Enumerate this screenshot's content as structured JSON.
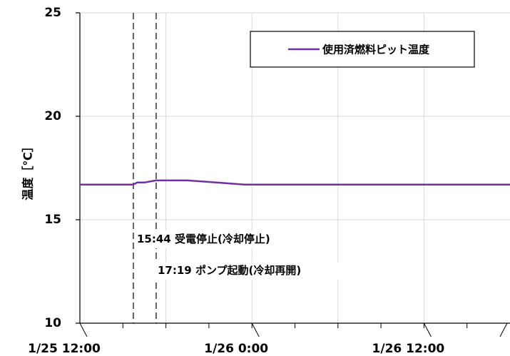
{
  "chart_data": {
    "type": "line",
    "ylabel": "温度［℃］",
    "ylim": [
      10,
      25
    ],
    "yticks": [
      10,
      15,
      20,
      25
    ],
    "x_tick_labels": [
      "1/25 12:00",
      "1/26 0:00",
      "1/26 12:00"
    ],
    "x_ticks_hours": [
      0,
      12,
      24
    ],
    "xlim_hours": [
      0,
      30
    ],
    "grid": true,
    "legend_position": "top-right",
    "series": [
      {
        "name": "使用済燃料ピット温度",
        "color": "#7030a0",
        "x_hours": [
          0,
          3.73,
          4.0,
          4.5,
          5.32,
          6.0,
          7.5,
          9.5,
          10.5,
          11.5,
          12.0,
          14.0,
          18.0,
          22.0,
          26.0,
          30.0
        ],
        "values": [
          16.7,
          16.7,
          16.8,
          16.8,
          16.9,
          16.9,
          16.9,
          16.8,
          16.75,
          16.7,
          16.7,
          16.7,
          16.7,
          16.7,
          16.7,
          16.7
        ]
      }
    ],
    "annotations": [
      {
        "x_hours": 3.73,
        "text": "15:44 受電停止(冷却停止)"
      },
      {
        "x_hours": 5.32,
        "text": "17:19 ポンプ起動(冷却再開)"
      }
    ]
  }
}
